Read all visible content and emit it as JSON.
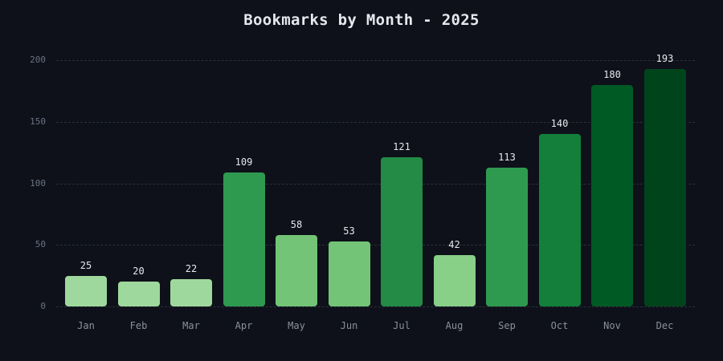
{
  "chart_data": {
    "type": "bar",
    "title": "Bookmarks by Month - 2025",
    "xlabel": "",
    "ylabel": "",
    "ylim": [
      0,
      200
    ],
    "yticks": [
      0,
      50,
      100,
      150,
      200
    ],
    "grid": true,
    "categories": [
      "Jan",
      "Feb",
      "Mar",
      "Apr",
      "May",
      "Jun",
      "Jul",
      "Aug",
      "Sep",
      "Oct",
      "Nov",
      "Dec"
    ],
    "values": [
      25,
      20,
      22,
      109,
      58,
      53,
      121,
      42,
      113,
      140,
      180,
      193
    ],
    "colors": [
      "#9fd89c",
      "#9fd89c",
      "#9fd89c",
      "#2e9a4f",
      "#73c476",
      "#73c476",
      "#238b45",
      "#88cf87",
      "#2e9a4f",
      "#137f3b",
      "#005a24",
      "#00441b"
    ],
    "value_labels": true
  }
}
